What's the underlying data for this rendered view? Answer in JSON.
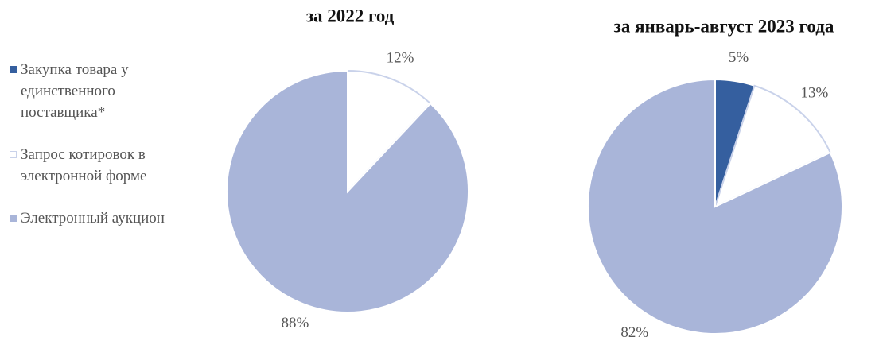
{
  "chart_data": [
    {
      "type": "pie",
      "title": "за 2022 год",
      "categories": [
        "Закупка товара у единственного поставщика*",
        "Запрос котировок в электронной форме",
        "Электронный аукцион"
      ],
      "values": [
        0,
        12,
        88
      ],
      "value_labels": [
        null,
        "12%",
        "88%"
      ],
      "colors": [
        "#355f9f",
        "#ffffff",
        "#a9b5d9"
      ],
      "legend": "left"
    },
    {
      "type": "pie",
      "title": "за январь-август 2023 года",
      "categories": [
        "Закупка товара у единственного поставщика*",
        "Запрос котировок в электронной форме",
        "Электронный аукцион"
      ],
      "values": [
        5,
        13,
        82
      ],
      "value_labels": [
        "5%",
        "13%",
        "82%"
      ],
      "colors": [
        "#355f9f",
        "#ffffff",
        "#a9b5d9"
      ]
    }
  ]
}
